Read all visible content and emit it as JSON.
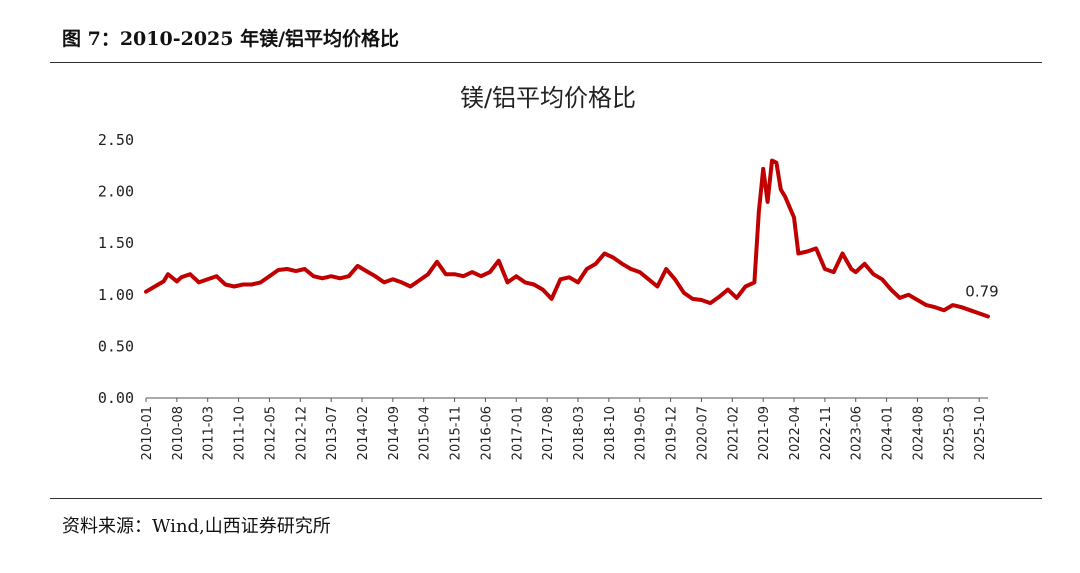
{
  "header": {
    "caption": "图 7：2010-2025 年镁/铝平均价格比"
  },
  "footer": {
    "source": "资料来源：Wind,山西证券研究所"
  },
  "chart_data": {
    "type": "line",
    "title": "镁/铝平均价格比",
    "xlabel": "",
    "ylabel": "",
    "ylim": [
      0,
      2.5
    ],
    "ytick_labels": [
      "0.00",
      "0.50",
      "1.00",
      "1.50",
      "2.00",
      "2.50"
    ],
    "xtick_labels": [
      "2010-01",
      "2010-08",
      "2011-03",
      "2011-10",
      "2012-05",
      "2012-12",
      "2013-07",
      "2014-02",
      "2014-09",
      "2015-04",
      "2015-11",
      "2016-06",
      "2017-01",
      "2017-08",
      "2018-03",
      "2018-10",
      "2019-05",
      "2019-12",
      "2020-07",
      "2021-02",
      "2021-09",
      "2022-04",
      "2022-11",
      "2023-06",
      "2024-01",
      "2024-08",
      "2025-03",
      "2025-10"
    ],
    "grid": false,
    "legend": "none",
    "line_color": "#C00000",
    "x": [
      "2010-01",
      "2010-03",
      "2010-05",
      "2010-06",
      "2010-08",
      "2010-09",
      "2010-11",
      "2011-01",
      "2011-03",
      "2011-05",
      "2011-07",
      "2011-09",
      "2011-11",
      "2012-01",
      "2012-03",
      "2012-05",
      "2012-07",
      "2012-09",
      "2012-11",
      "2013-01",
      "2013-03",
      "2013-05",
      "2013-07",
      "2013-09",
      "2013-11",
      "2014-01",
      "2014-03",
      "2014-05",
      "2014-07",
      "2014-09",
      "2014-11",
      "2015-01",
      "2015-03",
      "2015-05",
      "2015-07",
      "2015-09",
      "2015-11",
      "2016-01",
      "2016-03",
      "2016-05",
      "2016-07",
      "2016-09",
      "2016-11",
      "2017-01",
      "2017-03",
      "2017-05",
      "2017-07",
      "2017-09",
      "2017-11",
      "2018-01",
      "2018-03",
      "2018-05",
      "2018-07",
      "2018-09",
      "2018-11",
      "2019-01",
      "2019-03",
      "2019-05",
      "2019-07",
      "2019-09",
      "2019-11",
      "2020-01",
      "2020-03",
      "2020-05",
      "2020-07",
      "2020-09",
      "2020-11",
      "2021-01",
      "2021-03",
      "2021-05",
      "2021-07",
      "2021-08",
      "2021-09",
      "2021-10",
      "2021-11",
      "2021-12",
      "2022-01",
      "2022-02",
      "2022-03",
      "2022-04",
      "2022-05",
      "2022-07",
      "2022-09",
      "2022-11",
      "2023-01",
      "2023-03",
      "2023-05",
      "2023-06",
      "2023-08",
      "2023-10",
      "2023-12",
      "2024-02",
      "2024-04",
      "2024-06",
      "2024-08",
      "2024-10",
      "2024-12",
      "2025-02",
      "2025-04",
      "2025-06",
      "2025-08",
      "2025-10",
      "2025-12"
    ],
    "series": [
      {
        "values": [
          1.03,
          1.08,
          1.13,
          1.2,
          1.13,
          1.17,
          1.2,
          1.12,
          1.15,
          1.18,
          1.1,
          1.08,
          1.1,
          1.1,
          1.12,
          1.18,
          1.24,
          1.25,
          1.23,
          1.25,
          1.18,
          1.16,
          1.18,
          1.16,
          1.18,
          1.28,
          1.23,
          1.18,
          1.12,
          1.15,
          1.12,
          1.08,
          1.14,
          1.2,
          1.32,
          1.2,
          1.2,
          1.18,
          1.22,
          1.18,
          1.22,
          1.33,
          1.12,
          1.18,
          1.12,
          1.1,
          1.05,
          0.96,
          1.15,
          1.17,
          1.12,
          1.25,
          1.3,
          1.4,
          1.36,
          1.3,
          1.25,
          1.22,
          1.15,
          1.08,
          1.25,
          1.15,
          1.02,
          0.96,
          0.95,
          0.92,
          0.98,
          1.05,
          0.97,
          1.08,
          1.12,
          1.8,
          2.22,
          1.9,
          2.3,
          2.28,
          2.02,
          1.95,
          1.85,
          1.75,
          1.4,
          1.42,
          1.45,
          1.25,
          1.22,
          1.4,
          1.25,
          1.22,
          1.3,
          1.2,
          1.15,
          1.05,
          0.97,
          1.0,
          0.95,
          0.9,
          0.88,
          0.85,
          0.9,
          0.88,
          0.85,
          0.82,
          0.79
        ]
      }
    ],
    "annotations": [
      {
        "text": "0.79",
        "x": "2025-12",
        "y": 0.79
      }
    ]
  }
}
